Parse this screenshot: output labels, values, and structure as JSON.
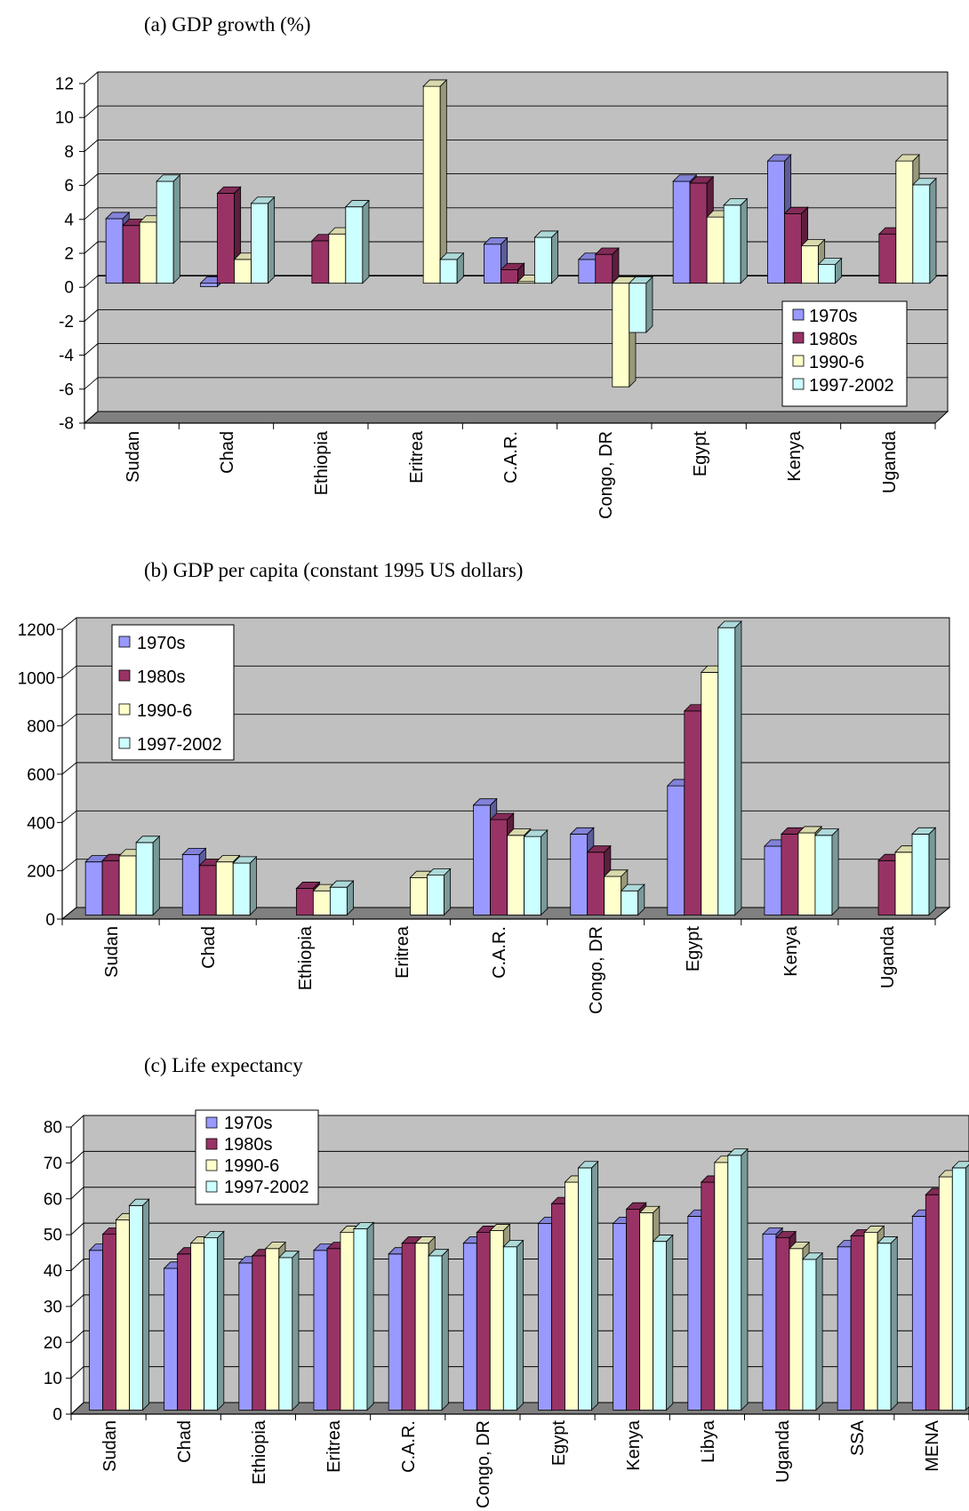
{
  "colors": {
    "series": [
      "#9999ff",
      "#993366",
      "#ffffcc",
      "#ccffff"
    ],
    "plot_area": "#c0c0c0",
    "plot_floor": "#808080",
    "gridline": "#000000"
  },
  "chart_data": [
    {
      "type": "bar",
      "title": "(a) GDP growth (%)",
      "categories": [
        "Sudan",
        "Chad",
        "Ethiopia",
        "Eritrea",
        "C.A.R.",
        "Congo, DR",
        "Egypt",
        "Kenya",
        "Uganda"
      ],
      "series": [
        {
          "name": "1970s",
          "values": [
            3.8,
            -0.2,
            null,
            null,
            2.3,
            1.4,
            6.0,
            7.2,
            null
          ]
        },
        {
          "name": "1980s",
          "values": [
            3.4,
            5.3,
            2.5,
            null,
            0.8,
            1.7,
            5.9,
            4.1,
            2.9
          ]
        },
        {
          "name": "1990-6",
          "values": [
            3.6,
            1.4,
            2.9,
            11.6,
            0.1,
            -6.1,
            3.9,
            2.2,
            7.2
          ]
        },
        {
          "name": "1997-2002",
          "values": [
            6.0,
            4.7,
            4.5,
            1.4,
            2.7,
            -2.9,
            4.6,
            1.1,
            5.8
          ]
        }
      ],
      "ylim": [
        -8,
        12
      ],
      "yticks": [
        "12",
        "10",
        "8",
        "6",
        "4",
        "2",
        "0",
        "-2",
        "-4",
        "-6",
        "-8"
      ],
      "grid": true,
      "legend": "bottom-right"
    },
    {
      "type": "bar",
      "title": "(b) GDP per capita (constant 1995 US dollars)",
      "categories": [
        "Sudan",
        "Chad",
        "Ethiopia",
        "Eritrea",
        "C.A.R.",
        "Congo, DR",
        "Egypt",
        "Kenya",
        "Uganda"
      ],
      "series": [
        {
          "name": "1970s",
          "values": [
            220,
            250,
            null,
            null,
            455,
            335,
            535,
            285,
            null
          ]
        },
        {
          "name": "1980s",
          "values": [
            225,
            205,
            110,
            null,
            395,
            260,
            845,
            335,
            225
          ]
        },
        {
          "name": "1990-6",
          "values": [
            245,
            220,
            100,
            155,
            330,
            160,
            1005,
            340,
            260
          ]
        },
        {
          "name": "1997-2002",
          "values": [
            300,
            215,
            115,
            165,
            325,
            100,
            1190,
            330,
            335
          ]
        }
      ],
      "ylim": [
        0,
        1200
      ],
      "yticks": [
        "1200",
        "1000",
        "800",
        "600",
        "400",
        "200",
        "0"
      ],
      "grid": true,
      "legend": "top-left"
    },
    {
      "type": "bar",
      "title": "(c) Life expectancy",
      "categories": [
        "Sudan",
        "Chad",
        "Ethiopia",
        "Eritrea",
        "C.A.R.",
        "Congo, DR",
        "Egypt",
        "Kenya",
        "Libya",
        "Uganda",
        "SSA",
        "MENA"
      ],
      "series": [
        {
          "name": "1970s",
          "values": [
            44.5,
            39.5,
            41,
            44.5,
            43.5,
            46.5,
            52,
            52,
            54,
            49,
            45.5,
            54
          ]
        },
        {
          "name": "1980s",
          "values": [
            49,
            43.5,
            43,
            45,
            46.5,
            49.5,
            57.5,
            56,
            63.5,
            48,
            48.5,
            60
          ]
        },
        {
          "name": "1990-6",
          "values": [
            53,
            46.5,
            45,
            49.5,
            46.5,
            50,
            63.5,
            55,
            69,
            45,
            49.5,
            65
          ]
        },
        {
          "name": "1997-2002",
          "values": [
            57,
            48,
            42.5,
            50.5,
            43,
            45.5,
            67.5,
            47,
            71,
            42,
            46.5,
            67.5
          ]
        }
      ],
      "ylim": [
        0,
        80
      ],
      "yticks": [
        "80",
        "70",
        "60",
        "50",
        "40",
        "30",
        "20",
        "10",
        "0"
      ],
      "grid": true,
      "legend": "top-left"
    }
  ]
}
